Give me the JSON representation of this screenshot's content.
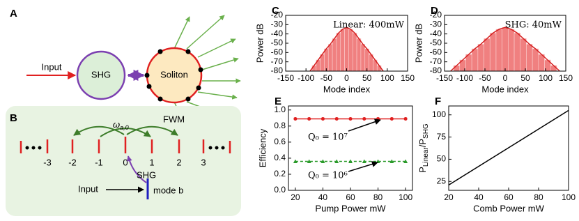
{
  "panels": {
    "A": {
      "label": "A",
      "input": "Input",
      "shg": "SHG",
      "soliton": "Soliton"
    },
    "B": {
      "label": "B",
      "omega": "ω",
      "omega_sub": "a,0",
      "fwm": "FWM",
      "modes": [
        "-3",
        "-2",
        "-1",
        "0",
        "1",
        "2",
        "3"
      ],
      "shg": "SHG",
      "input": "Input",
      "mode_b": "mode b"
    }
  },
  "chart_data": [
    {
      "type": "bar",
      "panel": "C",
      "xlabel": "Mode index",
      "ylabel": "Power  dB",
      "annotations": [
        "Linear: 400mW"
      ],
      "color": "#f08080",
      "edge_color": "#d42020",
      "x": [
        -90,
        -80,
        -70,
        -60,
        -50,
        -40,
        -30,
        -20,
        -10,
        0,
        10,
        20,
        30,
        40,
        50,
        60,
        70,
        80,
        90
      ],
      "values": [
        -80,
        -74,
        -68,
        -62,
        -56,
        -51,
        -45,
        -39,
        -35,
        -33,
        -35,
        -39,
        -45,
        -51,
        -56,
        -62,
        -68,
        -74,
        -80
      ],
      "xlim": [
        -150,
        150
      ],
      "xticks": [
        -150,
        -100,
        -50,
        0,
        50,
        100,
        150
      ],
      "ylim": [
        -80,
        -20
      ],
      "yticks": [
        -20,
        -30,
        -40,
        -50,
        -60,
        -70,
        -80
      ]
    },
    {
      "type": "bar",
      "panel": "D",
      "xlabel": "Mode index",
      "ylabel": "Power  dB",
      "annotations": [
        "SHG: 40mW"
      ],
      "color": "#f08080",
      "edge_color": "#d42020",
      "x": [
        -135,
        -120,
        -105,
        -90,
        -75,
        -60,
        -45,
        -30,
        -15,
        0,
        15,
        30,
        45,
        60,
        75,
        90,
        105,
        120,
        135
      ],
      "values": [
        -80,
        -74,
        -68,
        -62,
        -56,
        -51,
        -45,
        -39,
        -35,
        -33,
        -35,
        -39,
        -45,
        -51,
        -56,
        -62,
        -68,
        -74,
        -80
      ],
      "xlim": [
        -150,
        150
      ],
      "xticks": [
        -150,
        -100,
        -50,
        0,
        50,
        100,
        150
      ],
      "ylim": [
        -80,
        -20
      ],
      "yticks": [
        -20,
        -30,
        -40,
        -50,
        -60,
        -70,
        -80
      ]
    },
    {
      "type": "line",
      "panel": "E",
      "xlabel": "Pump Power  mW",
      "ylabel": "Efficiency",
      "annotations": [
        "Q₀ = 10⁷",
        "Q₀ = 10⁶"
      ],
      "x": [
        20,
        30,
        40,
        50,
        60,
        70,
        80,
        90,
        100
      ],
      "series": [
        {
          "color": "#e02020",
          "marker": "circle",
          "dashed": false,
          "values": [
            0.89,
            0.89,
            0.89,
            0.89,
            0.89,
            0.89,
            0.89,
            0.89,
            0.89
          ]
        },
        {
          "color": "#2a9a2a",
          "marker": "triangle",
          "dashed": true,
          "values": [
            0.36,
            0.36,
            0.36,
            0.36,
            0.36,
            0.36,
            0.36,
            0.36,
            0.36
          ]
        }
      ],
      "xlim": [
        15,
        105
      ],
      "xticks": [
        20,
        40,
        60,
        80,
        100
      ],
      "ylim": [
        0,
        1.05
      ],
      "yticks": [
        {
          "value": 0,
          "label": "0.0"
        },
        0.2,
        0.4,
        0.6,
        0.8,
        {
          "value": 1,
          "label": "1.0"
        }
      ]
    },
    {
      "type": "line",
      "panel": "F",
      "xlabel": "Comb Power mW",
      "ylabel": [
        "P",
        "Linear",
        "/P",
        "SHG"
      ],
      "x": [
        20,
        100
      ],
      "series": [
        {
          "color": "#000000",
          "values": [
            21,
            105
          ]
        }
      ],
      "xlim": [
        20,
        100
      ],
      "xticks": [
        20,
        40,
        60,
        80,
        100
      ],
      "ylim": [
        15,
        110
      ],
      "yticks": [
        25,
        50,
        75,
        100
      ]
    }
  ]
}
